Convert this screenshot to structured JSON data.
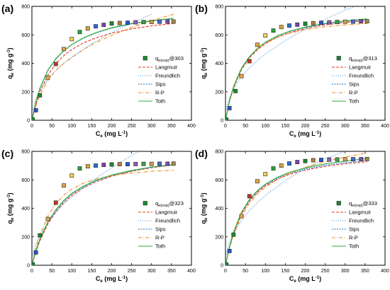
{
  "chart_data": [
    {
      "type": "scatter",
      "panel_label": "(a)",
      "title": "",
      "xlabel": "Ce (mg L-1)",
      "ylabel": "qe (mg g-1)",
      "xlim": [
        0,
        400
      ],
      "ylim": [
        0,
        800
      ],
      "xticks": [
        "0",
        "50",
        "100",
        "150",
        "200",
        "250",
        "300",
        "350",
        "400"
      ],
      "yticks": [
        "0",
        "200",
        "400",
        "600",
        "800"
      ],
      "legend_position": "center-right",
      "series": [
        {
          "name": "qe(exp)@303",
          "kind": "markers",
          "x": [
            2,
            10,
            20,
            40,
            60,
            80,
            100,
            120,
            140,
            160,
            180,
            200,
            220,
            240,
            260,
            280,
            300,
            320,
            340,
            355
          ],
          "y": [
            5,
            70,
            175,
            300,
            395,
            500,
            570,
            620,
            645,
            660,
            670,
            680,
            683,
            685,
            688,
            690,
            690,
            692,
            693,
            693
          ]
        },
        {
          "name": "Langmuir",
          "kind": "line",
          "color": "#e8372a",
          "dash": "4,2",
          "x": [
            0,
            10,
            20,
            40,
            60,
            80,
            100,
            130,
            160,
            200,
            250,
            300,
            355
          ],
          "y": [
            0,
            112,
            197,
            317,
            397,
            454,
            497,
            544,
            578,
            612,
            642,
            663,
            680
          ]
        },
        {
          "name": "Freundlich",
          "kind": "line",
          "color": "#3a8fd9",
          "dash": "1,2",
          "x": [
            2,
            10,
            20,
            40,
            60,
            80,
            100,
            150,
            200,
            250,
            300
          ],
          "y": [
            74,
            152,
            210,
            290,
            350,
            400,
            445,
            537,
            615,
            683,
            745
          ]
        },
        {
          "name": "Sips",
          "kind": "line",
          "color": "#1f6fbf",
          "dash": "2,1.5",
          "x": [
            0,
            10,
            20,
            40,
            60,
            80,
            100,
            130,
            160,
            200,
            250,
            300,
            355
          ],
          "y": [
            0,
            125,
            220,
            348,
            430,
            487,
            530,
            578,
            612,
            647,
            677,
            697,
            712
          ]
        },
        {
          "name": "R-P",
          "kind": "line",
          "color": "#f28c1e",
          "dash": "5,2,1,2",
          "x": [
            0,
            10,
            20,
            40,
            60,
            80,
            100,
            130,
            160,
            200,
            250,
            300,
            355
          ],
          "y": [
            0,
            100,
            175,
            280,
            350,
            400,
            440,
            498,
            545,
            597,
            652,
            700,
            745
          ]
        },
        {
          "name": "Toth",
          "kind": "line",
          "color": "#2fae3c",
          "dash": "",
          "x": [
            0,
            10,
            20,
            40,
            60,
            80,
            100,
            130,
            160,
            200,
            250,
            300,
            355
          ],
          "y": [
            0,
            128,
            225,
            352,
            433,
            490,
            532,
            580,
            615,
            650,
            680,
            700,
            716
          ]
        }
      ]
    },
    {
      "type": "scatter",
      "panel_label": "(b)",
      "title": "",
      "xlabel": "Ce (mg L-1)",
      "ylabel": "qe (mg g-1)",
      "xlim": [
        0,
        400
      ],
      "ylim": [
        0,
        800
      ],
      "xticks": [
        "0",
        "50",
        "100",
        "150",
        "200",
        "250",
        "300",
        "350",
        "400"
      ],
      "yticks": [
        "0",
        "200",
        "400",
        "600",
        "800"
      ],
      "legend_position": "center-right",
      "series": [
        {
          "name": "qe(exp)@313",
          "kind": "markers",
          "x": [
            2,
            10,
            25,
            40,
            60,
            80,
            100,
            120,
            140,
            160,
            180,
            200,
            220,
            240,
            260,
            280,
            300,
            320,
            340,
            355
          ],
          "y": [
            5,
            85,
            205,
            310,
            415,
            530,
            595,
            630,
            655,
            665,
            672,
            678,
            682,
            685,
            688,
            690,
            692,
            693,
            695,
            695
          ]
        },
        {
          "name": "Langmuir",
          "kind": "line",
          "color": "#e8372a",
          "dash": "4,2",
          "x": [
            0,
            10,
            20,
            40,
            60,
            80,
            100,
            130,
            160,
            200,
            250,
            300,
            355
          ],
          "y": [
            0,
            130,
            225,
            355,
            438,
            495,
            538,
            583,
            614,
            645,
            670,
            687,
            700
          ]
        },
        {
          "name": "Freundlich",
          "kind": "line",
          "color": "#3a8fd9",
          "dash": "1,2",
          "x": [
            2,
            10,
            20,
            40,
            60,
            80,
            100,
            150,
            200,
            250,
            300,
            320
          ],
          "y": [
            80,
            160,
            220,
            305,
            368,
            420,
            465,
            560,
            640,
            710,
            772,
            795
          ]
        },
        {
          "name": "Sips",
          "kind": "line",
          "color": "#1f6fbf",
          "dash": "2,1.5",
          "x": [
            0,
            10,
            20,
            40,
            60,
            80,
            100,
            130,
            160,
            200,
            250,
            300,
            355
          ],
          "y": [
            0,
            135,
            232,
            362,
            445,
            502,
            545,
            590,
            622,
            652,
            677,
            694,
            706
          ]
        },
        {
          "name": "R-P",
          "kind": "line",
          "color": "#f28c1e",
          "dash": "5,2,1,2",
          "x": [
            0,
            10,
            20,
            40,
            60,
            80,
            100,
            130,
            160,
            200,
            250,
            300,
            355
          ],
          "y": [
            0,
            140,
            238,
            367,
            447,
            502,
            542,
            583,
            611,
            637,
            657,
            670,
            680
          ]
        },
        {
          "name": "Toth",
          "kind": "line",
          "color": "#2fae3c",
          "dash": "",
          "x": [
            0,
            10,
            20,
            40,
            60,
            80,
            100,
            130,
            160,
            200,
            250,
            300,
            355
          ],
          "y": [
            0,
            135,
            233,
            364,
            447,
            505,
            548,
            593,
            625,
            655,
            681,
            698,
            712
          ]
        }
      ]
    },
    {
      "type": "scatter",
      "panel_label": "(c)",
      "title": "",
      "xlabel": "Ce (mg L-1)",
      "ylabel": "qe (mg g-1)",
      "xlim": [
        0,
        400
      ],
      "ylim": [
        0,
        800
      ],
      "xticks": [
        "0",
        "50",
        "100",
        "150",
        "200",
        "250",
        "300",
        "350",
        "400"
      ],
      "yticks": [
        "0",
        "200",
        "400",
        "600",
        "800"
      ],
      "legend_position": "center-right",
      "series": [
        {
          "name": "qe(exp)@323",
          "kind": "markers",
          "x": [
            2,
            10,
            20,
            40,
            60,
            80,
            100,
            120,
            140,
            160,
            180,
            200,
            220,
            240,
            260,
            280,
            300,
            320,
            340,
            355
          ],
          "y": [
            5,
            90,
            210,
            325,
            440,
            560,
            630,
            680,
            695,
            700,
            705,
            708,
            710,
            710,
            711,
            712,
            712,
            713,
            713,
            714
          ]
        },
        {
          "name": "Langmuir",
          "kind": "line",
          "color": "#e8372a",
          "dash": "4,2",
          "x": [
            0,
            10,
            20,
            40,
            60,
            80,
            100,
            130,
            160,
            200,
            250,
            300,
            355
          ],
          "y": [
            0,
            95,
            172,
            290,
            375,
            440,
            490,
            545,
            585,
            625,
            660,
            685,
            705
          ]
        },
        {
          "name": "Freundlich",
          "kind": "line",
          "color": "#3a8fd9",
          "dash": "1,2",
          "x": [
            2,
            10,
            20,
            40,
            60,
            80,
            100,
            150,
            200,
            250,
            270
          ],
          "y": [
            70,
            150,
            210,
            300,
            370,
            430,
            480,
            590,
            685,
            770,
            800
          ]
        },
        {
          "name": "Sips",
          "kind": "line",
          "color": "#1f6fbf",
          "dash": "2,1.5",
          "x": [
            0,
            10,
            20,
            40,
            60,
            80,
            100,
            130,
            160,
            200,
            250,
            300,
            355
          ],
          "y": [
            0,
            100,
            180,
            300,
            385,
            450,
            500,
            553,
            592,
            630,
            663,
            688,
            706
          ]
        },
        {
          "name": "R-P",
          "kind": "line",
          "color": "#f28c1e",
          "dash": "5,2,1,2",
          "x": [
            0,
            10,
            20,
            40,
            60,
            80,
            100,
            130,
            160,
            200,
            250,
            300,
            355
          ],
          "y": [
            0,
            120,
            212,
            345,
            432,
            492,
            535,
            578,
            605,
            630,
            648,
            660,
            668
          ]
        },
        {
          "name": "Toth",
          "kind": "line",
          "color": "#2fae3c",
          "dash": "",
          "x": [
            0,
            10,
            20,
            40,
            60,
            80,
            100,
            130,
            160,
            200,
            250,
            300,
            355
          ],
          "y": [
            0,
            102,
            184,
            305,
            390,
            455,
            505,
            557,
            596,
            634,
            666,
            690,
            708
          ]
        }
      ]
    },
    {
      "type": "scatter",
      "panel_label": "(d)",
      "title": "",
      "xlabel": "Ce (mg L-1)",
      "ylabel": "qe (mg g-1)",
      "xlim": [
        0,
        400
      ],
      "ylim": [
        0,
        800
      ],
      "xticks": [
        "0",
        "50",
        "100",
        "150",
        "200",
        "250",
        "300",
        "350",
        "400"
      ],
      "yticks": [
        "0",
        "200",
        "400",
        "600",
        "800"
      ],
      "legend_position": "center-right",
      "series": [
        {
          "name": "qe(exp)@333",
          "kind": "markers",
          "x": [
            2,
            10,
            20,
            40,
            60,
            80,
            100,
            120,
            140,
            160,
            180,
            200,
            220,
            240,
            260,
            280,
            300,
            320,
            340,
            355
          ],
          "y": [
            5,
            100,
            215,
            345,
            485,
            590,
            640,
            680,
            700,
            715,
            725,
            732,
            738,
            740,
            742,
            743,
            744,
            745,
            745,
            746
          ]
        },
        {
          "name": "Langmuir",
          "kind": "line",
          "color": "#e8372a",
          "dash": "4,2",
          "x": [
            0,
            10,
            20,
            40,
            60,
            80,
            100,
            130,
            160,
            200,
            250,
            300,
            355
          ],
          "y": [
            0,
            125,
            222,
            360,
            450,
            512,
            558,
            605,
            638,
            668,
            695,
            713,
            727
          ]
        },
        {
          "name": "Freundlich",
          "kind": "line",
          "color": "#3a8fd9",
          "dash": "1,2",
          "x": [
            2,
            10,
            20,
            40,
            60,
            80,
            100,
            150,
            200,
            250,
            300
          ],
          "y": [
            75,
            160,
            225,
            315,
            385,
            440,
            490,
            595,
            680,
            750,
            800
          ]
        },
        {
          "name": "Sips",
          "kind": "line",
          "color": "#1f6fbf",
          "dash": "2,1.5",
          "x": [
            0,
            10,
            20,
            40,
            60,
            80,
            100,
            130,
            160,
            200,
            250,
            300,
            355
          ],
          "y": [
            0,
            128,
            228,
            368,
            458,
            520,
            565,
            612,
            645,
            676,
            702,
            720,
            735
          ]
        },
        {
          "name": "R-P",
          "kind": "line",
          "color": "#f28c1e",
          "dash": "5,2,1,2",
          "x": [
            0,
            10,
            20,
            40,
            60,
            80,
            100,
            130,
            160,
            200,
            250,
            300,
            355
          ],
          "y": [
            0,
            118,
            210,
            345,
            435,
            500,
            548,
            603,
            645,
            688,
            728,
            760,
            790
          ]
        },
        {
          "name": "Toth",
          "kind": "line",
          "color": "#2fae3c",
          "dash": "",
          "x": [
            0,
            10,
            20,
            40,
            60,
            80,
            100,
            130,
            160,
            200,
            250,
            300,
            355
          ],
          "y": [
            0,
            130,
            232,
            372,
            462,
            525,
            570,
            618,
            652,
            684,
            712,
            732,
            750
          ]
        }
      ]
    }
  ]
}
